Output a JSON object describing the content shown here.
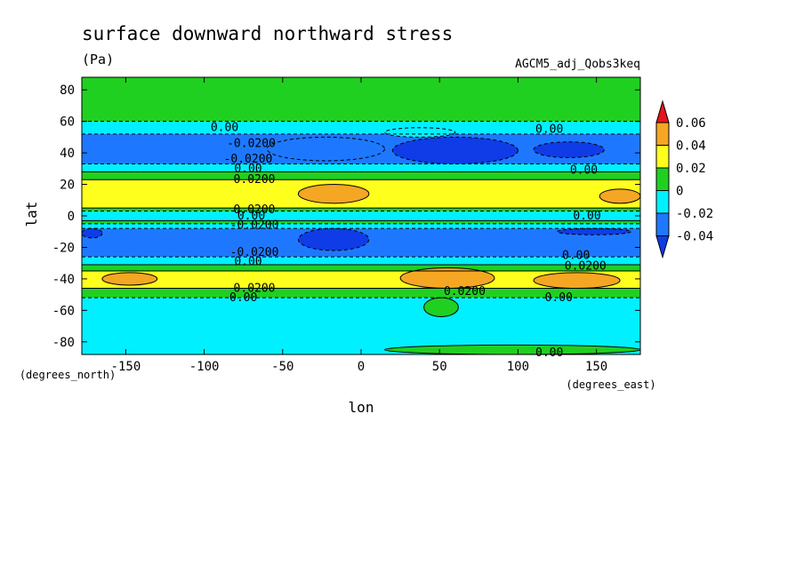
{
  "chart_data": {
    "type": "heatmap",
    "title": "surface downward northward stress",
    "units": "(Pa)",
    "dataset": "AGCM5_adj_Qobs3keq",
    "xlabel": "lon",
    "ylabel": "lat",
    "xunit": "(degrees_east)",
    "yunit": "(degrees_north)",
    "xlim": [
      -178,
      178
    ],
    "ylim": [
      -88,
      88
    ],
    "xticks": [
      -150,
      -100,
      -50,
      0,
      50,
      100,
      150
    ],
    "yticks": [
      80,
      60,
      40,
      20,
      0,
      -20,
      -40,
      -60,
      -80
    ],
    "xtick_labels": [
      "-150",
      "-100",
      "-50",
      "0",
      "50",
      "100",
      "150"
    ],
    "ytick_labels": [
      "80",
      "60",
      "40",
      "20",
      "0",
      "-20",
      "-40",
      "-60",
      "-80"
    ],
    "colorbar": {
      "levels": [
        -0.04,
        -0.02,
        0,
        0.02,
        0.04,
        0.06
      ],
      "labels": [
        "0.06",
        "0.04",
        "0.02",
        "0",
        "-0.02",
        "-0.04"
      ],
      "colors": [
        "#e8141c",
        "#f5a623",
        "#ffff1e",
        "#20d020",
        "#00f0ff",
        "#1e78ff",
        "#0f3ce6"
      ]
    },
    "colors": {
      "below_neg004": "#0f3ce6",
      "neg004_neg002": "#1e78ff",
      "neg002_0": "#00f0ff",
      "0_002": "#20d020",
      "002_004": "#ffff1e",
      "004_006": "#f5a623",
      "above_006": "#e8141c"
    },
    "latitude_bands": [
      {
        "lat_from": 88,
        "lat_to": 60,
        "value": 0.005
      },
      {
        "lat_from": 60,
        "lat_to": 52,
        "value": -0.01
      },
      {
        "lat_from": 52,
        "lat_to": 33,
        "value": -0.03
      },
      {
        "lat_from": 33,
        "lat_to": 28,
        "value": -0.01
      },
      {
        "lat_from": 28,
        "lat_to": 23,
        "value": 0.01
      },
      {
        "lat_from": 23,
        "lat_to": 5,
        "value": 0.03
      },
      {
        "lat_from": 5,
        "lat_to": 3,
        "value": 0.01
      },
      {
        "lat_from": 3,
        "lat_to": -3,
        "value": -0.01
      },
      {
        "lat_from": -3,
        "lat_to": -5,
        "value": 0.01
      },
      {
        "lat_from": -5,
        "lat_to": -8,
        "value": -0.01
      },
      {
        "lat_from": -8,
        "lat_to": -26,
        "value": -0.03
      },
      {
        "lat_from": -26,
        "lat_to": -31,
        "value": -0.01
      },
      {
        "lat_from": -31,
        "lat_to": -35,
        "value": 0.01
      },
      {
        "lat_from": -35,
        "lat_to": -46,
        "value": 0.03
      },
      {
        "lat_from": -46,
        "lat_to": -52,
        "value": 0.01
      },
      {
        "lat_from": -52,
        "lat_to": -88,
        "value": -0.01
      }
    ],
    "regions": [
      {
        "lon_min": -60,
        "lon_max": 15,
        "lat_min": 35,
        "lat_max": 50,
        "value": -0.03
      },
      {
        "lon_min": 15,
        "lon_max": 60,
        "lat_min": 50,
        "lat_max": 56,
        "value": -0.01
      },
      {
        "lon_min": 20,
        "lon_max": 100,
        "lat_min": 33,
        "lat_max": 50,
        "value": -0.05
      },
      {
        "lon_min": 110,
        "lon_max": 155,
        "lat_min": 37,
        "lat_max": 47,
        "value": -0.05
      },
      {
        "lon_min": -40,
        "lon_max": 5,
        "lat_min": 8,
        "lat_max": 20,
        "value": 0.05
      },
      {
        "lon_min": 152,
        "lon_max": 178,
        "lat_min": 8,
        "lat_max": 17,
        "value": 0.05
      },
      {
        "lon_min": -40,
        "lon_max": 5,
        "lat_min": -22,
        "lat_max": -8,
        "value": -0.05
      },
      {
        "lon_min": 125,
        "lon_max": 172,
        "lat_min": -12,
        "lat_max": -8,
        "value": -0.05
      },
      {
        "lon_min": -178,
        "lon_max": -165,
        "lat_min": -14,
        "lat_max": -8,
        "value": -0.05
      },
      {
        "lon_min": -165,
        "lon_max": -130,
        "lat_min": -44,
        "lat_max": -36,
        "value": 0.05
      },
      {
        "lon_min": 25,
        "lon_max": 85,
        "lat_min": -46,
        "lat_max": -33,
        "value": 0.05
      },
      {
        "lon_min": 110,
        "lon_max": 165,
        "lat_min": -46,
        "lat_max": -36,
        "value": 0.05
      },
      {
        "lon_min": 40,
        "lon_max": 62,
        "lat_min": -64,
        "lat_max": -52,
        "value": 0.01
      },
      {
        "lon_min": 15,
        "lon_max": 178,
        "lat_min": -88,
        "lat_max": -82,
        "value": 0.01
      }
    ],
    "contour_labels": [
      {
        "text": "0.00",
        "lon": -87,
        "lat": 56
      },
      {
        "text": "-0.0200",
        "lon": -70,
        "lat": 46
      },
      {
        "text": "-0.0200",
        "lon": -72,
        "lat": 36
      },
      {
        "text": "0.00",
        "lon": -72,
        "lat": 30
      },
      {
        "text": "0.0200",
        "lon": -68,
        "lat": 23
      },
      {
        "text": "0.0200",
        "lon": -68,
        "lat": 4
      },
      {
        "text": "0.00",
        "lon": -70,
        "lat": 0
      },
      {
        "text": "-0.0200",
        "lon": -68,
        "lat": -6
      },
      {
        "text": "-0.0200",
        "lon": -68,
        "lat": -23
      },
      {
        "text": "0.00",
        "lon": -72,
        "lat": -29
      },
      {
        "text": "0.0200",
        "lon": -68,
        "lat": -46
      },
      {
        "text": "0.00",
        "lon": -75,
        "lat": -52
      },
      {
        "text": "0.00",
        "lon": 120,
        "lat": 55
      },
      {
        "text": "0.00",
        "lon": 142,
        "lat": 29
      },
      {
        "text": "0.00",
        "lon": 144,
        "lat": 0
      },
      {
        "text": "0.00",
        "lon": 137,
        "lat": -25
      },
      {
        "text": "0.0200",
        "lon": 143,
        "lat": -32
      },
      {
        "text": "0.0200",
        "lon": 66,
        "lat": -48
      },
      {
        "text": "0.00",
        "lon": 126,
        "lat": -52
      },
      {
        "text": "0.00",
        "lon": 120,
        "lat": -87
      }
    ]
  }
}
